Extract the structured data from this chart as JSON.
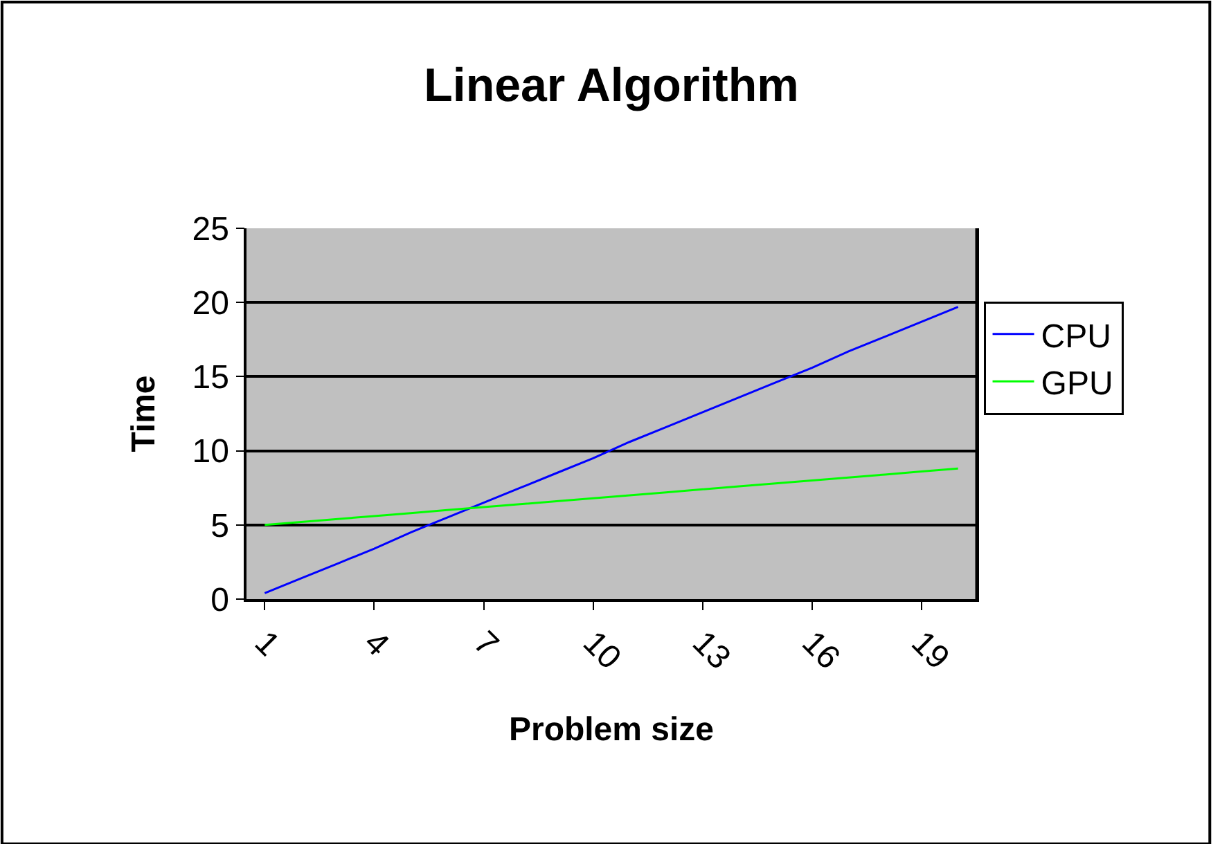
{
  "chart_data": {
    "type": "line",
    "title": "Linear Algorithm",
    "xlabel": "Problem size",
    "ylabel": "Time",
    "categories": [
      "1",
      null,
      null,
      "4",
      null,
      null,
      "7",
      null,
      null,
      "10",
      null,
      null,
      "13",
      null,
      null,
      "16",
      null,
      null,
      "19",
      null
    ],
    "series": [
      {
        "name": "CPU",
        "color": "#0000ff",
        "values": [
          0.4,
          1.4,
          2.4,
          3.4,
          4.5,
          5.5,
          6.5,
          7.5,
          8.5,
          9.5,
          10.6,
          11.6,
          12.6,
          13.6,
          14.6,
          15.6,
          16.7,
          17.7,
          18.7,
          19.7
        ]
      },
      {
        "name": "GPU",
        "color": "#00ff00",
        "values": [
          5.0,
          5.2,
          5.4,
          5.6,
          5.8,
          6.0,
          6.2,
          6.4,
          6.6,
          6.8,
          7.0,
          7.2,
          7.4,
          7.6,
          7.8,
          8.0,
          8.2,
          8.4,
          8.6,
          8.8
        ]
      }
    ],
    "ylim": [
      0,
      25
    ],
    "yticks": [
      0,
      5,
      10,
      15,
      20,
      25
    ],
    "grid": "y",
    "legend": "right",
    "marker": "none",
    "line_style": "solid"
  }
}
